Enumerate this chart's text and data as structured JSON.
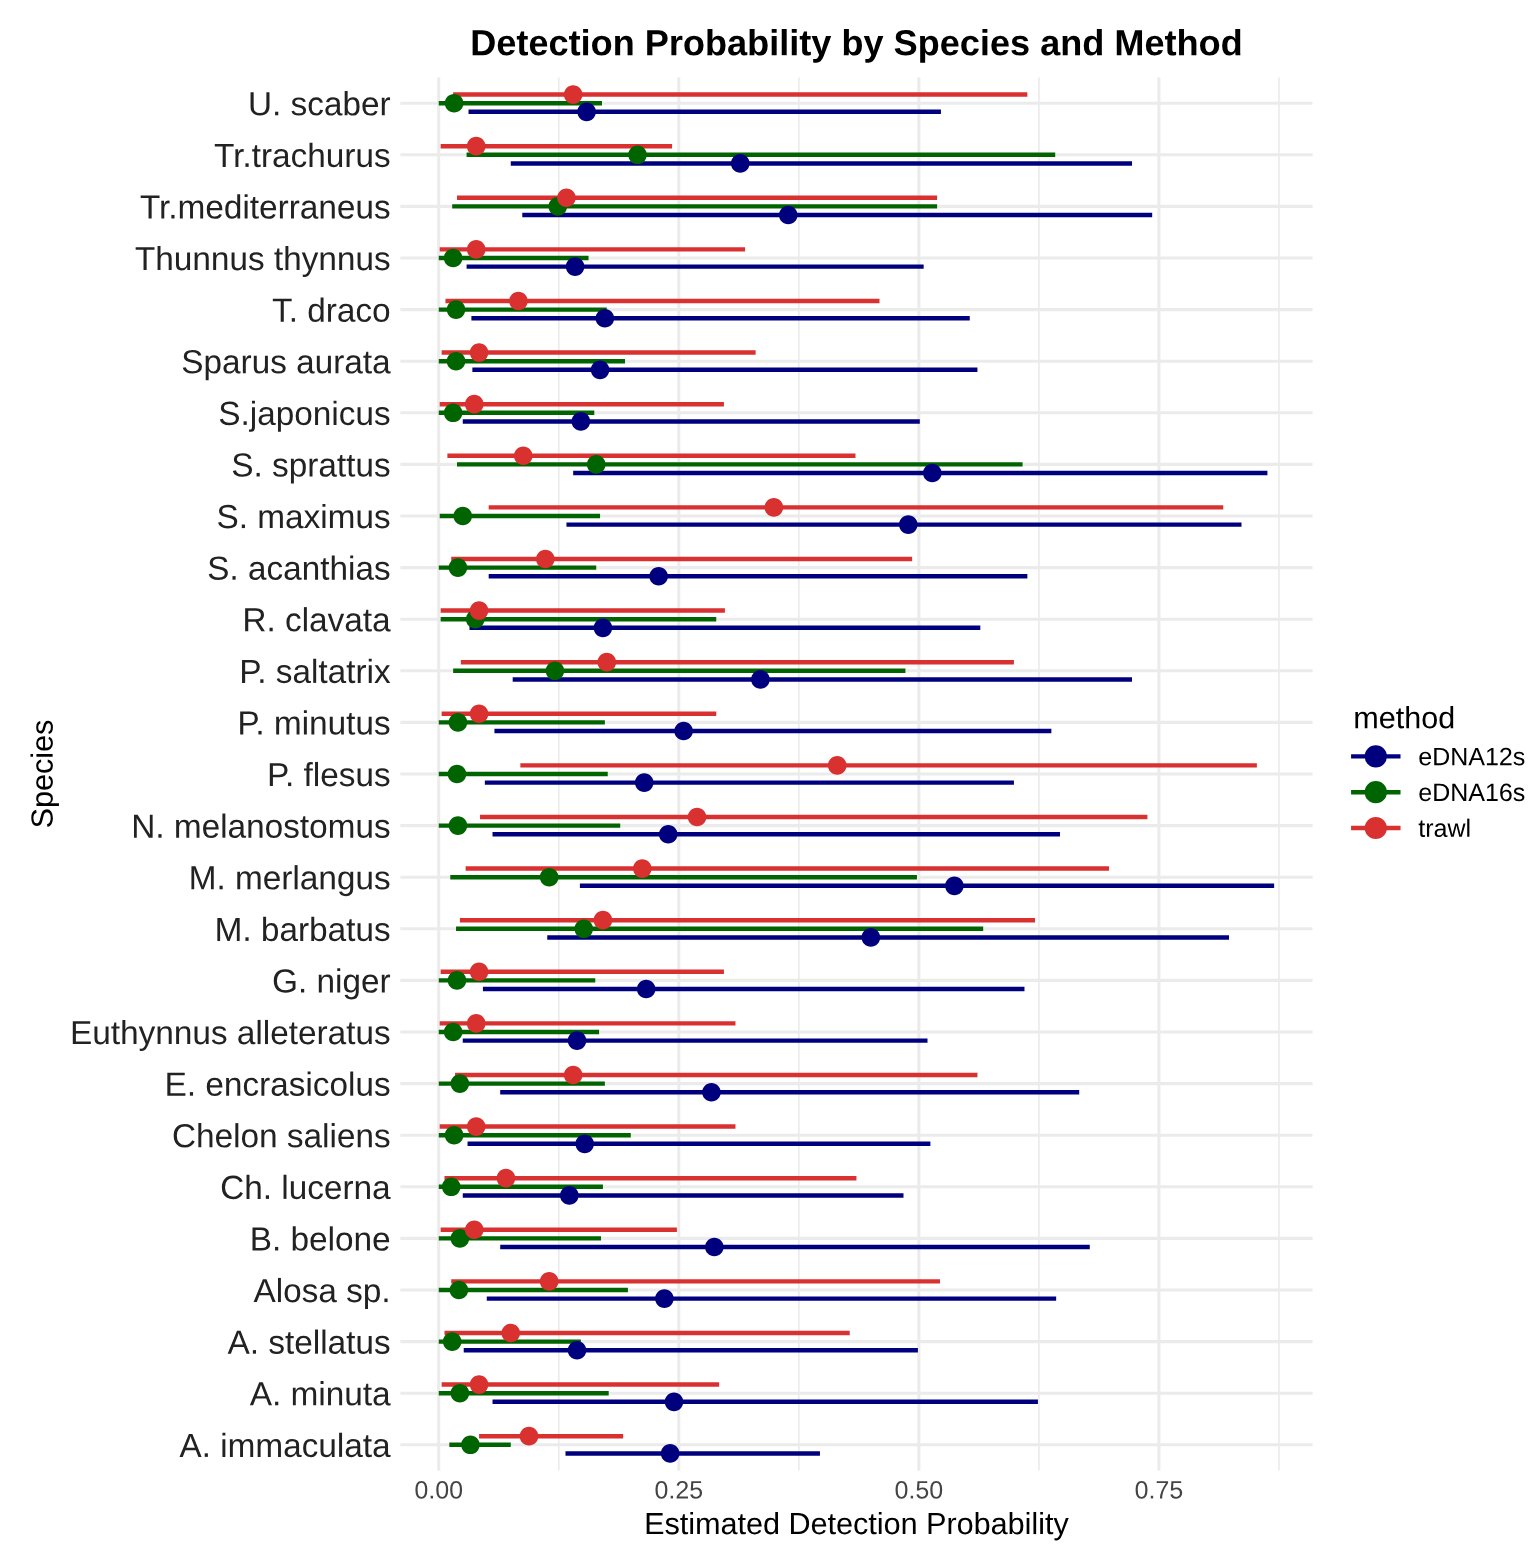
{
  "chart_data": {
    "type": "scatter",
    "orientation": "horizontal",
    "title": "Detection Probability by Species and Method",
    "xlabel": "Estimated Detection Probability",
    "ylabel": "Species",
    "legend_title": "method",
    "legend": "right",
    "grid": true,
    "marker": "circle",
    "categories": [
      "U. scaber",
      "Tr.trachurus",
      "Tr.mediterraneus",
      "Thunnus thynnus",
      "T. draco",
      "Sparus aurata",
      "S.japonicus",
      "S. sprattus",
      "S. maximus",
      "S. acanthias",
      "R. clavata",
      "P. saltatrix",
      "P. minutus",
      "P. flesus",
      "N. melanostomus",
      "M. merlangus",
      "M. barbatus",
      "G. niger",
      "Euthynnus alleteratus",
      "E. encrasicolus",
      "Chelon saliens",
      "Ch. lucerna",
      "B. belone",
      "Alosa sp.",
      "A. stellatus",
      "A. minuta",
      "A. immaculata"
    ],
    "xlim": [
      -0.04,
      0.91
    ],
    "xticks": [
      {
        "value": 0,
        "label": "0.00"
      },
      {
        "value": 0.125,
        "label": null
      },
      {
        "value": 0.25,
        "label": "0.25"
      },
      {
        "value": 0.375,
        "label": null
      },
      {
        "value": 0.5,
        "label": "0.50"
      },
      {
        "value": 0.625,
        "label": null
      },
      {
        "value": 0.75,
        "label": "0.75"
      },
      {
        "value": 0.875,
        "label": null
      }
    ],
    "series": [
      {
        "name": "eDNA12s",
        "color": "#00007f",
        "values": [
          0.154,
          0.314,
          0.364,
          0.142,
          0.173,
          0.168,
          0.148,
          0.514,
          0.489,
          0.229,
          0.171,
          0.335,
          0.255,
          0.214,
          0.239,
          0.537,
          0.45,
          0.216,
          0.144,
          0.284,
          0.152,
          0.136,
          0.287,
          0.235,
          0.144,
          0.245,
          0.241
        ],
        "errors": [
          [
            0.031,
            0.523
          ],
          [
            0.075,
            0.722
          ],
          [
            0.087,
            0.743
          ],
          [
            0.029,
            0.505
          ],
          [
            0.034,
            0.553
          ],
          [
            0.035,
            0.561
          ],
          [
            0.025,
            0.501
          ],
          [
            0.14,
            0.863
          ],
          [
            0.133,
            0.836
          ],
          [
            0.052,
            0.613
          ],
          [
            0.032,
            0.564
          ],
          [
            0.077,
            0.722
          ],
          [
            0.058,
            0.638
          ],
          [
            0.048,
            0.599
          ],
          [
            0.056,
            0.647
          ],
          [
            0.147,
            0.87
          ],
          [
            0.113,
            0.823
          ],
          [
            0.046,
            0.61
          ],
          [
            0.025,
            0.509
          ],
          [
            0.064,
            0.667
          ],
          [
            0.03,
            0.512
          ],
          [
            0.025,
            0.484
          ],
          [
            0.064,
            0.678
          ],
          [
            0.05,
            0.643
          ],
          [
            0.026,
            0.499
          ],
          [
            0.056,
            0.624
          ],
          [
            0.132,
            0.397
          ]
        ]
      },
      {
        "name": "eDNA16s",
        "color": "#006400",
        "values": [
          0.016,
          0.207,
          0.124,
          0.015,
          0.018,
          0.018,
          0.015,
          0.164,
          0.025,
          0.02,
          0.038,
          0.121,
          0.02,
          0.019,
          0.02,
          0.115,
          0.151,
          0.019,
          0.015,
          0.022,
          0.016,
          0.013,
          0.022,
          0.021,
          0.014,
          0.022,
          0.033
        ],
        "errors": [
          [
            0.0,
            0.17
          ],
          [
            0.029,
            0.642
          ],
          [
            0.014,
            0.519
          ],
          [
            0.0,
            0.156
          ],
          [
            0.0,
            0.175
          ],
          [
            0.0,
            0.194
          ],
          [
            0.0,
            0.162
          ],
          [
            0.019,
            0.608
          ],
          [
            0.001,
            0.168
          ],
          [
            0.0,
            0.164
          ],
          [
            0.002,
            0.289
          ],
          [
            0.015,
            0.486
          ],
          [
            0.0,
            0.173
          ],
          [
            0.0,
            0.176
          ],
          [
            0.0,
            0.189
          ],
          [
            0.012,
            0.498
          ],
          [
            0.018,
            0.567
          ],
          [
            0.0,
            0.163
          ],
          [
            0.0,
            0.167
          ],
          [
            0.0,
            0.173
          ],
          [
            0.0,
            0.2
          ],
          [
            0.0,
            0.171
          ],
          [
            0.0,
            0.169
          ],
          [
            0.0,
            0.197
          ],
          [
            0.0,
            0.148
          ],
          [
            0.0,
            0.177
          ],
          [
            0.011,
            0.075
          ]
        ]
      },
      {
        "name": "trawl",
        "color": "#d93030",
        "values": [
          0.14,
          0.039,
          0.133,
          0.039,
          0.083,
          0.042,
          0.037,
          0.088,
          0.349,
          0.111,
          0.042,
          0.175,
          0.042,
          0.415,
          0.269,
          0.212,
          0.171,
          0.042,
          0.039,
          0.14,
          0.039,
          0.07,
          0.037,
          0.115,
          0.075,
          0.042,
          0.094
        ],
        "errors": [
          [
            0.015,
            0.613
          ],
          [
            0.002,
            0.243
          ],
          [
            0.019,
            0.519
          ],
          [
            0.001,
            0.319
          ],
          [
            0.007,
            0.459
          ],
          [
            0.003,
            0.33
          ],
          [
            0.001,
            0.297
          ],
          [
            0.009,
            0.434
          ],
          [
            0.052,
            0.817
          ],
          [
            0.013,
            0.493
          ],
          [
            0.002,
            0.298
          ],
          [
            0.023,
            0.599
          ],
          [
            0.003,
            0.289
          ],
          [
            0.085,
            0.852
          ],
          [
            0.043,
            0.738
          ],
          [
            0.028,
            0.698
          ],
          [
            0.022,
            0.621
          ],
          [
            0.002,
            0.297
          ],
          [
            0.001,
            0.309
          ],
          [
            0.017,
            0.561
          ],
          [
            0.001,
            0.309
          ],
          [
            0.006,
            0.435
          ],
          [
            0.002,
            0.248
          ],
          [
            0.013,
            0.522
          ],
          [
            0.006,
            0.428
          ],
          [
            0.003,
            0.292
          ],
          [
            0.042,
            0.192
          ]
        ]
      }
    ]
  }
}
